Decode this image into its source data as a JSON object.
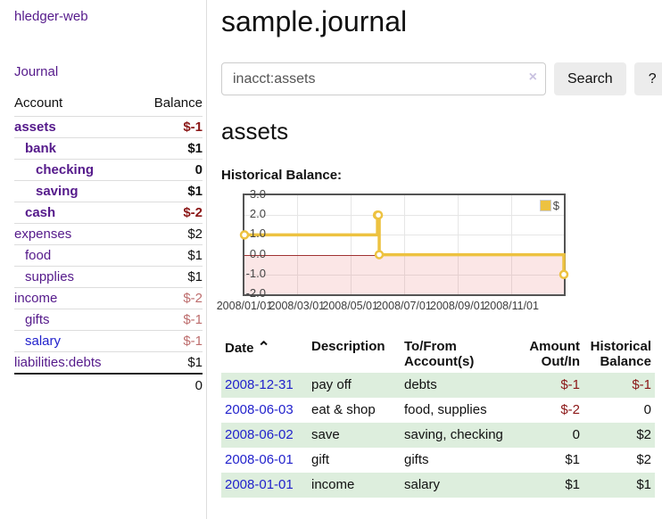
{
  "colors": {
    "link_purple": "#551a8b",
    "link_blue": "#2222cc",
    "negative_strong": "#8b1717",
    "negative_soft": "#bd6d6d",
    "row_green": "#ddeedd",
    "chart_gold": "#edc240",
    "zero_line": "#a03333"
  },
  "sidebar": {
    "brand": "hledger-web",
    "journal_link": "Journal",
    "accounts_table": {
      "headers": {
        "account": "Account",
        "balance": "Balance"
      },
      "rows": [
        {
          "account": "assets",
          "indent": 0,
          "bold": true,
          "balance": "$-1",
          "balance_style": "neg-strong",
          "link": "purple"
        },
        {
          "account": "bank",
          "indent": 1,
          "bold": true,
          "balance": "$1",
          "balance_style": "pos",
          "link": "purple"
        },
        {
          "account": "checking",
          "indent": 2,
          "bold": true,
          "balance": "0",
          "balance_style": "pos",
          "link": "purple"
        },
        {
          "account": "saving",
          "indent": 2,
          "bold": true,
          "balance": "$1",
          "balance_style": "pos",
          "link": "purple"
        },
        {
          "account": "cash",
          "indent": 1,
          "bold": true,
          "balance": "$-2",
          "balance_style": "neg-strong",
          "link": "purple"
        },
        {
          "account": "expenses",
          "indent": 0,
          "bold": false,
          "balance": "$2",
          "balance_style": "pos",
          "link": "purple"
        },
        {
          "account": "food",
          "indent": 1,
          "bold": false,
          "balance": "$1",
          "balance_style": "pos",
          "link": "purple"
        },
        {
          "account": "supplies",
          "indent": 1,
          "bold": false,
          "balance": "$1",
          "balance_style": "pos",
          "link": "purple"
        },
        {
          "account": "income",
          "indent": 0,
          "bold": false,
          "balance": "$-2",
          "balance_style": "neg-soft",
          "link": "purple"
        },
        {
          "account": "gifts",
          "indent": 1,
          "bold": false,
          "balance": "$-1",
          "balance_style": "neg-soft",
          "link": "purple"
        },
        {
          "account": "salary",
          "indent": 1,
          "bold": false,
          "balance": "$-1",
          "balance_style": "neg-soft",
          "link": "blue"
        },
        {
          "account": "liabilities:debts",
          "indent": 0,
          "bold": false,
          "balance": "$1",
          "balance_style": "pos",
          "link": "purple"
        }
      ],
      "total": "0"
    }
  },
  "header": {
    "title": "sample.journal"
  },
  "search": {
    "value": "inacct:assets",
    "clear_icon": "×",
    "button_label": "Search",
    "help_label": "?"
  },
  "account_page": {
    "title": "assets",
    "chart_label": "Historical Balance:"
  },
  "chart_data": {
    "type": "line",
    "step": true,
    "title": "Historical Balance",
    "legend": "$",
    "legend_position": "top-right",
    "grid": true,
    "ylim": [
      -2,
      3
    ],
    "y_ticks": [
      "3.0",
      "2.0",
      "1.0",
      "0.0",
      "-1.0",
      "-2.0"
    ],
    "y_tick_values": [
      3,
      2,
      1,
      0,
      -1,
      -2
    ],
    "x_ticks": [
      "2008/01/01",
      "2008/03/01",
      "2008/05/01",
      "2008/07/01",
      "2008/09/01",
      "2008/11/01"
    ],
    "x_tick_days": [
      0,
      60,
      121,
      182,
      244,
      305
    ],
    "x_range_days": [
      0,
      365
    ],
    "negative_region": {
      "below": 0
    },
    "series": [
      {
        "name": "$",
        "color": "#edc240",
        "points": [
          {
            "date": "2008-01-01",
            "value": 1
          },
          {
            "date": "2008-06-01",
            "value": 2
          },
          {
            "date": "2008-06-02",
            "value": 2
          },
          {
            "date": "2008-06-03",
            "value": 0
          },
          {
            "date": "2008-12-31",
            "value": -1
          }
        ]
      }
    ]
  },
  "register_table": {
    "headers": {
      "date": "Date",
      "sort_icon": "⌃",
      "description": "Description",
      "accounts": "To/From Account(s)",
      "amount": "Amount Out/In",
      "balance": "Historical Balance"
    },
    "rows": [
      {
        "date": "2008-12-31",
        "description": "pay off",
        "accounts": "debts",
        "amount": "$-1",
        "amount_neg": true,
        "balance": "$-1",
        "balance_neg": true,
        "shade": true
      },
      {
        "date": "2008-06-03",
        "description": "eat & shop",
        "accounts": "food, supplies",
        "amount": "$-2",
        "amount_neg": true,
        "balance": "0",
        "balance_neg": false,
        "shade": false
      },
      {
        "date": "2008-06-02",
        "description": "save",
        "accounts": "saving, checking",
        "amount": "0",
        "amount_neg": false,
        "balance": "$2",
        "balance_neg": false,
        "shade": true
      },
      {
        "date": "2008-06-01",
        "description": "gift",
        "accounts": "gifts",
        "amount": "$1",
        "amount_neg": false,
        "balance": "$2",
        "balance_neg": false,
        "shade": false
      },
      {
        "date": "2008-01-01",
        "description": "income",
        "accounts": "salary",
        "amount": "$1",
        "amount_neg": false,
        "balance": "$1",
        "balance_neg": false,
        "shade": true
      }
    ]
  }
}
